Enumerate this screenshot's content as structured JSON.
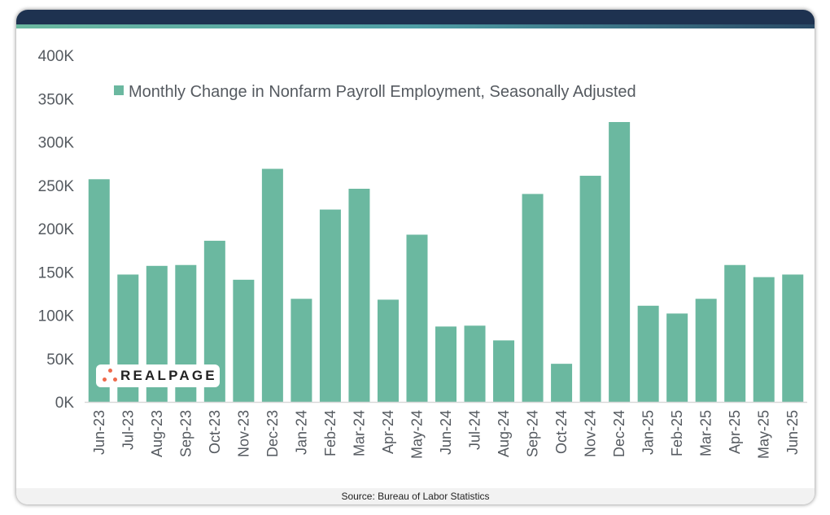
{
  "colors": {
    "bar": "#6bb8a0",
    "header": "#1e3250",
    "axis_text": "#555a60"
  },
  "footer": {
    "source": "Source: Bureau of Labor Statistics"
  },
  "logo": {
    "text": "REALPAGE",
    "registered_mark": "®"
  },
  "chart_data": {
    "type": "bar",
    "title": "",
    "xlabel": "",
    "ylabel": "",
    "ylim": [
      0,
      400000
    ],
    "yticks": [
      0,
      50000,
      100000,
      150000,
      200000,
      250000,
      300000,
      350000,
      400000
    ],
    "ytick_labels": [
      "0K",
      "50K",
      "100K",
      "150K",
      "200K",
      "250K",
      "300K",
      "350K",
      "400K"
    ],
    "grid": false,
    "legend_position": "top",
    "categories": [
      "Jun-23",
      "Jul-23",
      "Aug-23",
      "Sep-23",
      "Oct-23",
      "Nov-23",
      "Dec-23",
      "Jan-24",
      "Feb-24",
      "Mar-24",
      "Apr-24",
      "May-24",
      "Jun-24",
      "Jul-24",
      "Aug-24",
      "Sep-24",
      "Oct-24",
      "Nov-24",
      "Dec-24",
      "Jan-25",
      "Feb-25",
      "Mar-25",
      "Apr-25",
      "May-25",
      "Jun-25"
    ],
    "series": [
      {
        "name": "Monthly Change in Nonfarm Payroll Employment, Seasonally Adjusted",
        "values": [
          257000,
          147000,
          157000,
          158000,
          186000,
          141000,
          269000,
          119000,
          222000,
          246000,
          118000,
          193000,
          87000,
          88000,
          71000,
          240000,
          44000,
          261000,
          323000,
          111000,
          102000,
          119000,
          158000,
          144000,
          147000
        ]
      }
    ]
  }
}
